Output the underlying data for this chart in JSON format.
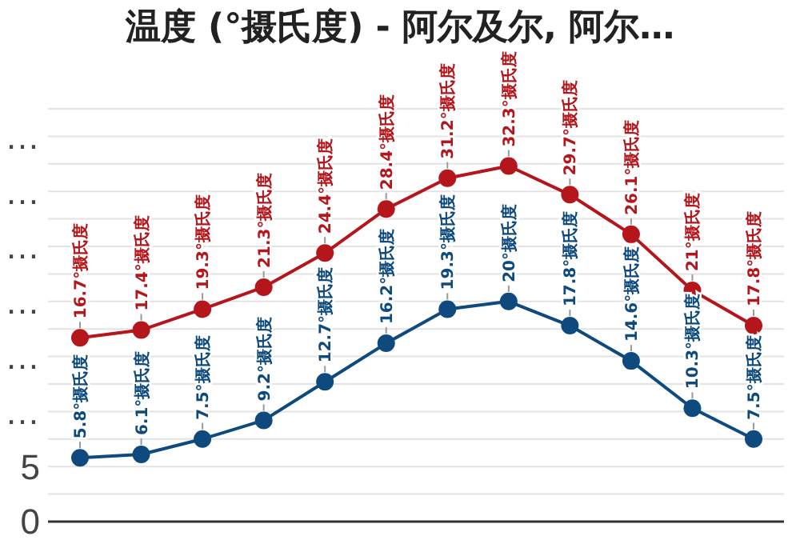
{
  "chart_data": {
    "type": "line",
    "title": "温度 (°摄氏度) - 阿尔及尔, 阿尔…",
    "categories": [
      null,
      null,
      null,
      null,
      null,
      null,
      null,
      null,
      null,
      null,
      null,
      null
    ],
    "series": [
      {
        "color": "#b5161c",
        "values": [
          16.7,
          17.4,
          19.3,
          21.3,
          24.4,
          28.4,
          31.2,
          32.3,
          29.7,
          26.1,
          21,
          17.8
        ],
        "value_labels": [
          "16.7°摄氏度",
          "17.4°摄氏度",
          "19.3°摄氏度",
          "21.3°摄氏度",
          "24.4°摄氏度",
          "28.4°摄氏度",
          "31.2°摄氏度",
          "32.3°摄氏度",
          "29.7°摄氏度",
          "26.1°摄氏度",
          "21°摄氏度",
          "17.8°摄氏度"
        ]
      },
      {
        "color": "#0e4a7e",
        "values": [
          5.8,
          6.1,
          7.5,
          9.2,
          12.7,
          16.2,
          19.3,
          20,
          17.8,
          14.6,
          10.3,
          7.5
        ],
        "value_labels": [
          "5.8°摄氏度",
          "6.1°摄氏度",
          "7.5°摄氏度",
          "9.2°摄氏度",
          "12.7°摄氏度",
          "16.2°摄氏度",
          "19.3°摄氏度",
          "20°摄氏度",
          "17.8°摄氏度",
          "14.6°摄氏度",
          "10.3°摄氏度",
          "7.5°摄氏度"
        ]
      }
    ],
    "ylim": [
      0,
      37.5
    ],
    "yticks": [
      0,
      {
        "value": 2.5,
        "label": null
      },
      5,
      {
        "value": 7.5,
        "label": null
      },
      {
        "value": 10,
        "label": "…"
      },
      {
        "value": 12.5,
        "label": null
      },
      {
        "value": 15,
        "label": "…"
      },
      {
        "value": 17.5,
        "label": null
      },
      {
        "value": 20,
        "label": "…"
      },
      {
        "value": 22.5,
        "label": null
      },
      {
        "value": 25,
        "label": "…"
      },
      {
        "value": 27.5,
        "label": null
      },
      {
        "value": 30,
        "label": "…"
      },
      {
        "value": 32.5,
        "label": null
      },
      {
        "value": 35,
        "label": "…"
      },
      {
        "value": 37.5,
        "label": null
      }
    ],
    "grid": "y",
    "tick_labels": "y",
    "marker": "circle",
    "line_style": "solid"
  }
}
